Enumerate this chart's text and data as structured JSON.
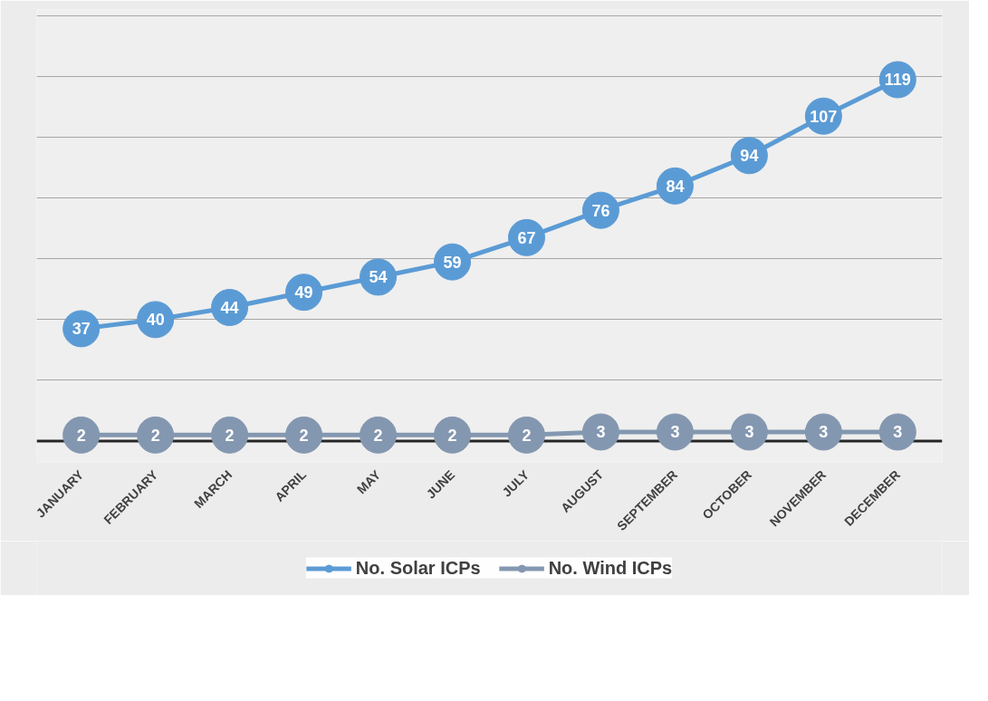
{
  "chart_data": {
    "type": "line",
    "categories": [
      "JANUARY",
      "FEBRUARY",
      "MARCH",
      "APRIL",
      "MAY",
      "JUNE",
      "JULY",
      "AUGUST",
      "SEPTEMBER",
      "OCTOBER",
      "NOVEMBER",
      "DECEMBER"
    ],
    "series": [
      {
        "name": "No. Solar ICPs",
        "color": "#5b9bd5",
        "values": [
          37,
          40,
          44,
          49,
          54,
          59,
          67,
          76,
          84,
          94,
          107,
          119
        ]
      },
      {
        "name": "No. Wind ICPs",
        "color": "#8497b0",
        "values": [
          2,
          2,
          2,
          2,
          2,
          2,
          2,
          3,
          3,
          3,
          3,
          3
        ]
      }
    ],
    "ylim": [
      0,
      140
    ],
    "yticks": [
      {
        "value": 0,
        "label": null
      },
      {
        "value": 20,
        "label": null
      },
      {
        "value": 40,
        "label": null
      },
      {
        "value": 60,
        "label": null
      },
      {
        "value": 80,
        "label": null
      },
      {
        "value": 100,
        "label": null
      },
      {
        "value": 120,
        "label": null
      },
      {
        "value": 140,
        "label": null
      }
    ],
    "tick_labels": "x",
    "grid": "y",
    "legend": "bottom",
    "marker": "circle",
    "line_style": "solid",
    "data_labels": true
  }
}
